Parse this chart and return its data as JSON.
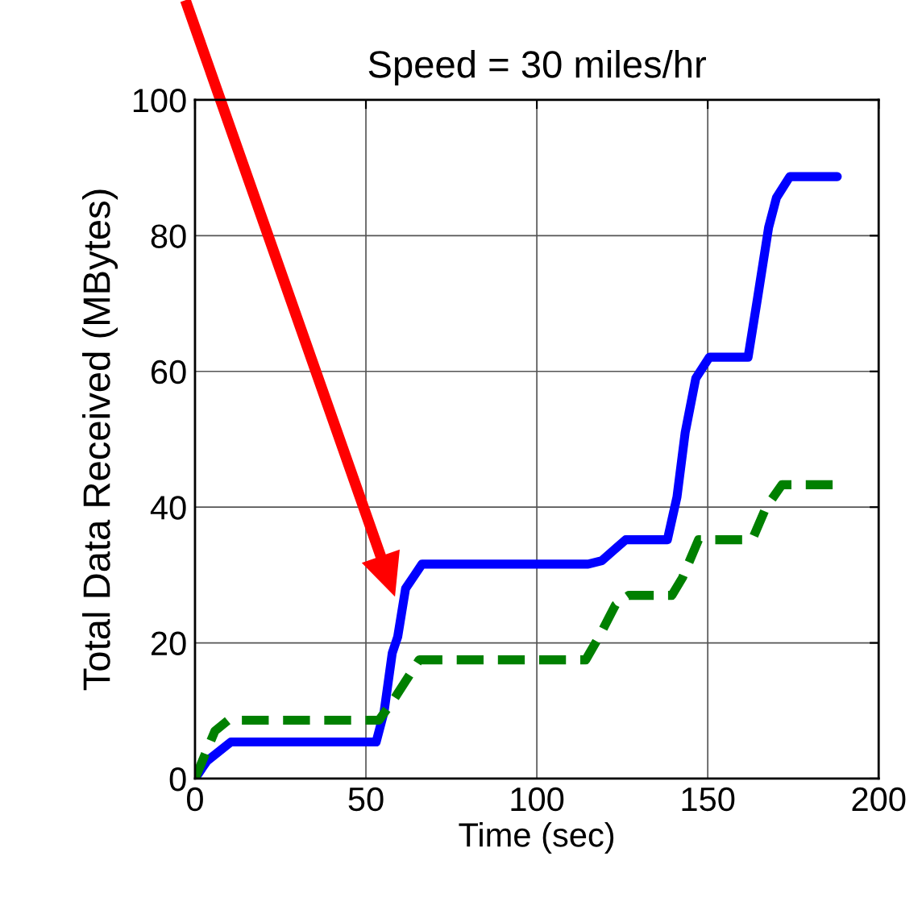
{
  "chart_data": {
    "type": "line",
    "title": "Speed = 30 miles/hr",
    "xlabel": "Time (sec)",
    "ylabel": "Total Data Received (MBytes)",
    "series": [
      {
        "color": "#0000ff",
        "line_style": "solid",
        "x": [
          0,
          3.5,
          10.5,
          53,
          55.3,
          57.7,
          59.3,
          61.6,
          66.4,
          115,
          119,
          126,
          138.2,
          141,
          143.4,
          146.5,
          150.5,
          161.8,
          164.6,
          167.8,
          170.1,
          174,
          187.9
        ],
        "values": [
          0,
          2.6,
          5.4,
          5.4,
          9.8,
          18.5,
          20.9,
          28,
          31.6,
          31.6,
          32.1,
          35.2,
          35.2,
          41.5,
          51,
          59,
          62.1,
          62.1,
          70.9,
          81.2,
          85.6,
          88.7,
          88.7
        ]
      },
      {
        "color": "#008000",
        "line_style": "dashed",
        "x": [
          0,
          5.8,
          9.7,
          53.8,
          57.7,
          65.6,
          114.3,
          118.2,
          123,
          126.9,
          139.5,
          142.6,
          147.3,
          163,
          167,
          171.7,
          187.9
        ],
        "values": [
          0,
          7,
          8.6,
          8.6,
          11.3,
          17.5,
          17.5,
          20.9,
          25.6,
          27,
          27,
          29.6,
          35.2,
          35.2,
          39.9,
          43.3,
          43.3
        ]
      }
    ],
    "xlim": [
      0,
      200
    ],
    "xticks": [
      0,
      50,
      100,
      150,
      200
    ],
    "ylim": [
      0,
      100
    ],
    "yticks": [
      0,
      20,
      40,
      60,
      80,
      100
    ],
    "grid": true,
    "marker": "none"
  }
}
